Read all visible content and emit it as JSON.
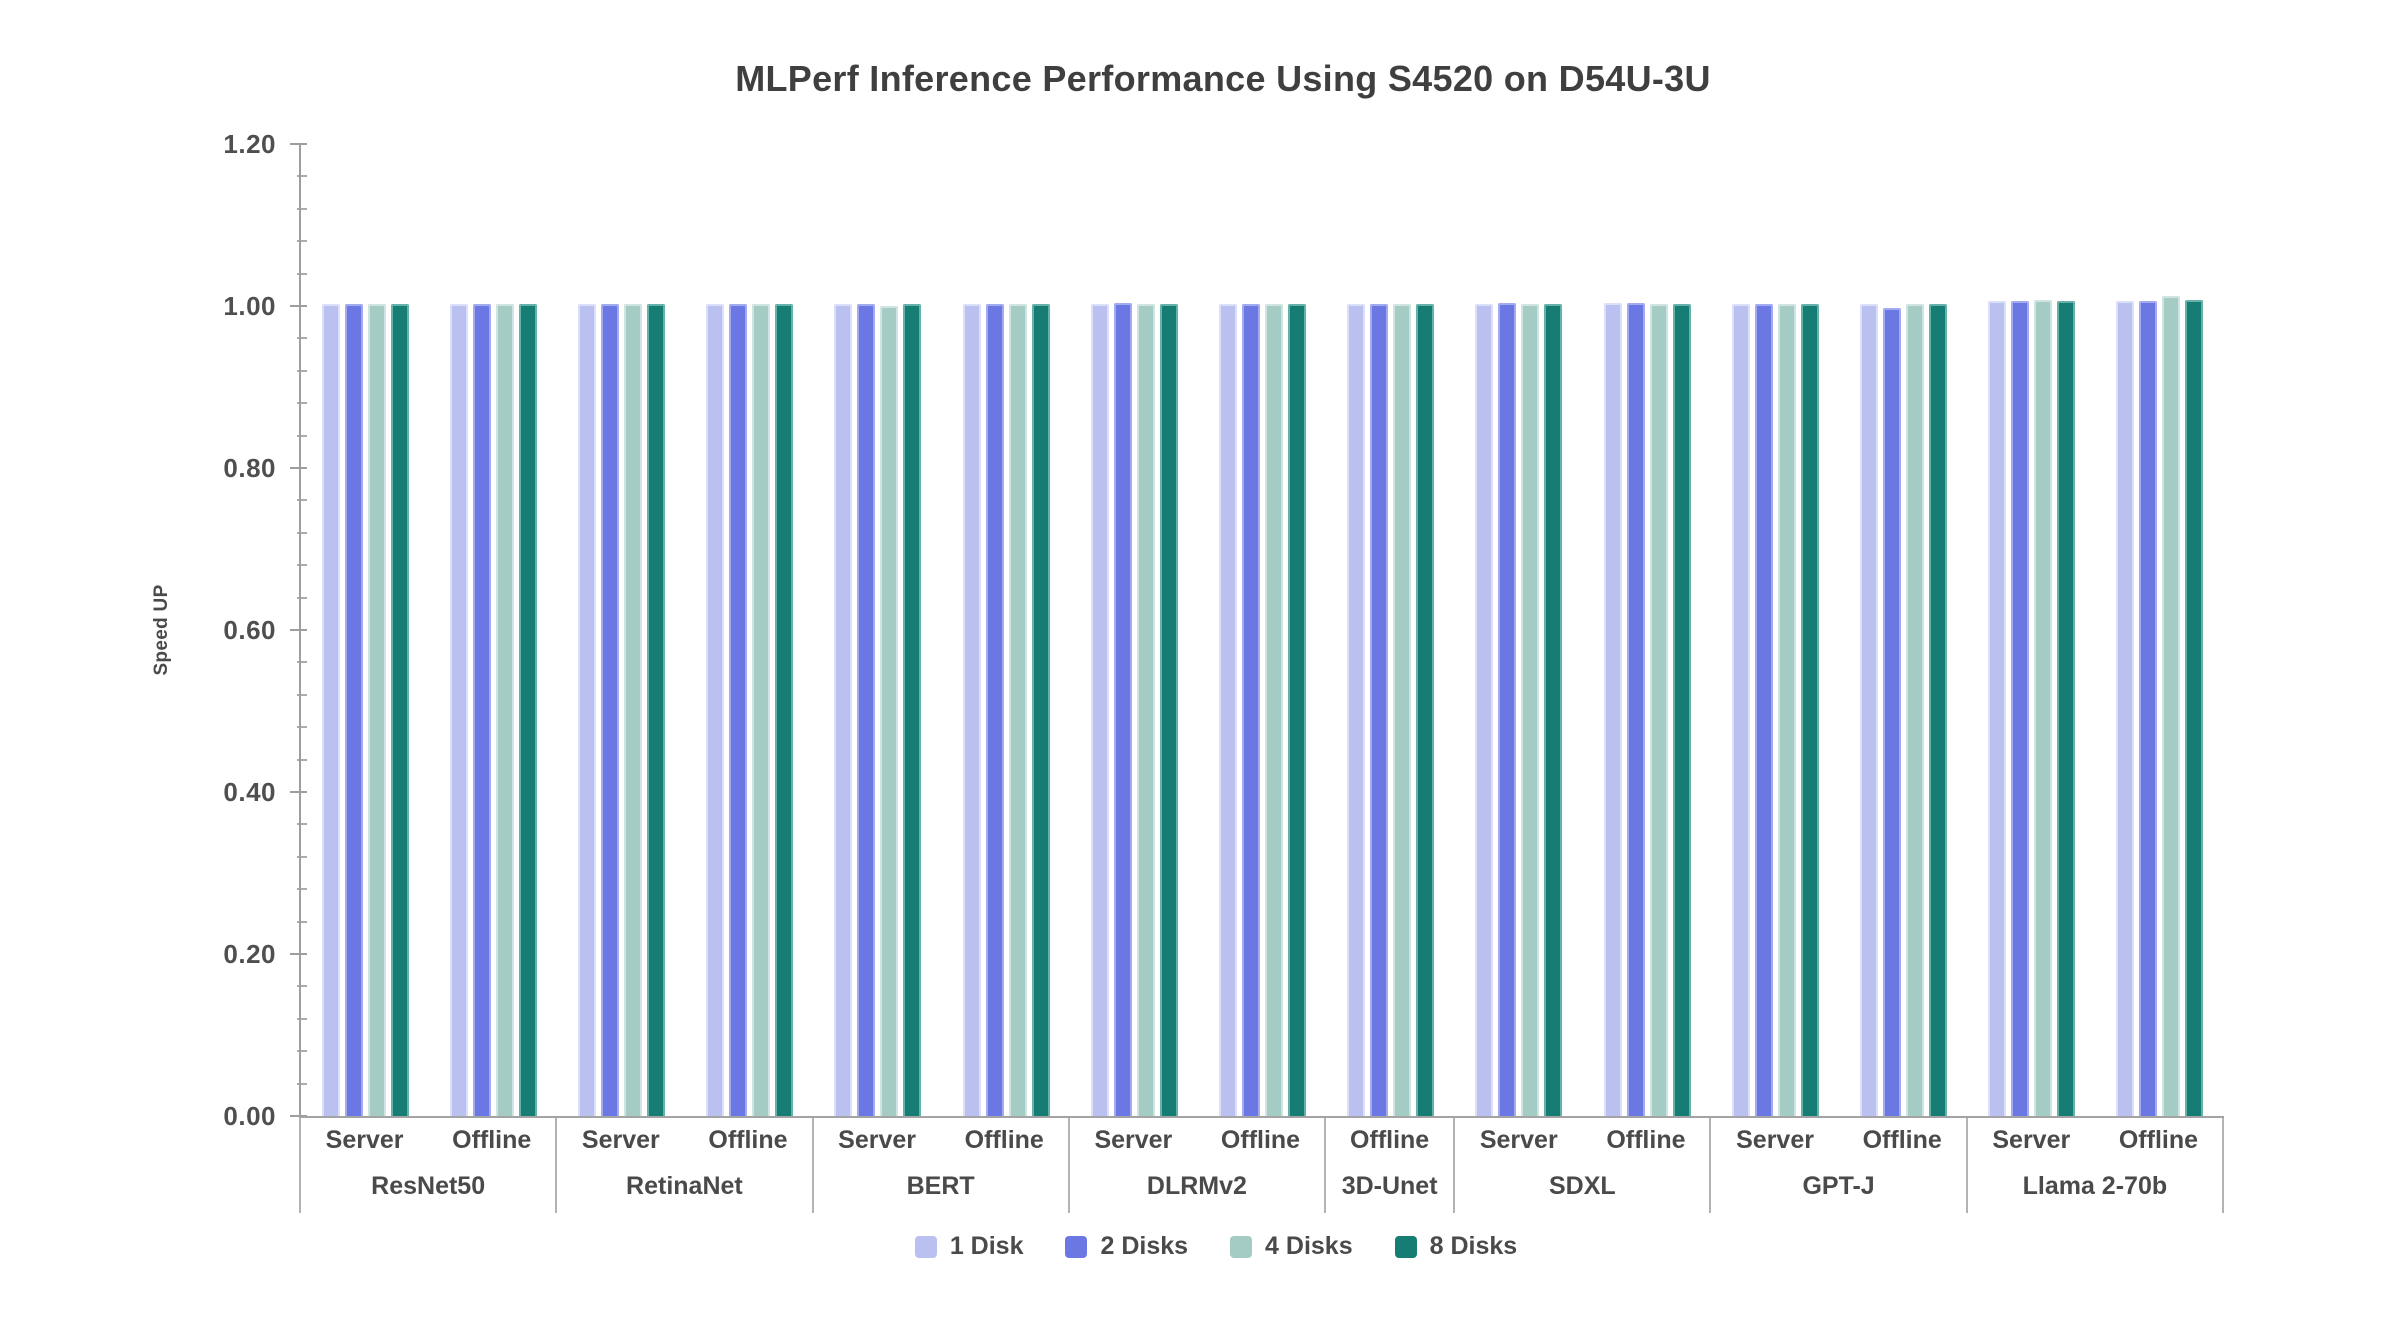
{
  "chart_data": {
    "type": "bar",
    "title": "MLPerf Inference Performance Using S4520 on D54U-3U",
    "xlabel": "",
    "ylabel": "Speed UP",
    "ylim": [
      0,
      1.2
    ],
    "ytick_values": [
      0,
      0.2,
      0.4,
      0.6,
      0.8,
      1.0,
      1.2
    ],
    "ytick_labels": [
      "0.00",
      "0.20",
      "0.40",
      "0.60",
      "0.80",
      "1.00",
      "1.20"
    ],
    "yminor_step": 0.04,
    "grid": false,
    "legend_position": "bottom",
    "series": [
      {
        "name": "1 Disk",
        "color": "#bac0f0",
        "edge": "#dcdff8"
      },
      {
        "name": "2 Disks",
        "color": "#6b77e2",
        "edge": "#a3abf0"
      },
      {
        "name": "4 Disks",
        "color": "#a5cbc5",
        "edge": "#d0e5e1"
      },
      {
        "name": "8 Disks",
        "color": "#167d74",
        "edge": "#66b1a9"
      }
    ],
    "groups": [
      {
        "model": "ResNet50",
        "scenarios": [
          {
            "label": "Server",
            "values": [
              1.002,
              1.003,
              1.002,
              1.003
            ]
          },
          {
            "label": "Offline",
            "values": [
              1.002,
              1.002,
              1.002,
              1.002
            ]
          }
        ]
      },
      {
        "model": "RetinaNet",
        "scenarios": [
          {
            "label": "Server",
            "values": [
              1.003,
              1.002,
              1.003,
              1.003
            ]
          },
          {
            "label": "Offline",
            "values": [
              1.003,
              1.003,
              1.002,
              1.003
            ]
          }
        ]
      },
      {
        "model": "BERT",
        "scenarios": [
          {
            "label": "Server",
            "values": [
              1.002,
              1.003,
              1.0,
              1.002
            ]
          },
          {
            "label": "Offline",
            "values": [
              1.003,
              1.003,
              1.002,
              1.003
            ]
          }
        ]
      },
      {
        "model": "DLRMv2",
        "scenarios": [
          {
            "label": "Server",
            "values": [
              1.003,
              1.004,
              1.002,
              1.003
            ]
          },
          {
            "label": "Offline",
            "values": [
              1.003,
              1.003,
              1.003,
              1.002
            ]
          }
        ]
      },
      {
        "model": "3D-Unet",
        "scenarios": [
          {
            "label": "Offline",
            "values": [
              1.003,
              1.003,
              1.002,
              1.003
            ]
          }
        ]
      },
      {
        "model": "SDXL",
        "scenarios": [
          {
            "label": "Server",
            "values": [
              1.003,
              1.004,
              1.003,
              1.003
            ]
          },
          {
            "label": "Offline",
            "values": [
              1.004,
              1.004,
              1.003,
              1.002
            ]
          }
        ]
      },
      {
        "model": "GPT-J",
        "scenarios": [
          {
            "label": "Server",
            "values": [
              1.003,
              1.003,
              1.003,
              1.003
            ]
          },
          {
            "label": "Offline",
            "values": [
              1.003,
              0.997,
              1.003,
              1.002
            ]
          }
        ]
      },
      {
        "model": "Llama 2-70b",
        "scenarios": [
          {
            "label": "Server",
            "values": [
              1.006,
              1.006,
              1.007,
              1.006
            ]
          },
          {
            "label": "Offline",
            "values": [
              1.006,
              1.006,
              1.012,
              1.008
            ]
          }
        ]
      }
    ]
  }
}
